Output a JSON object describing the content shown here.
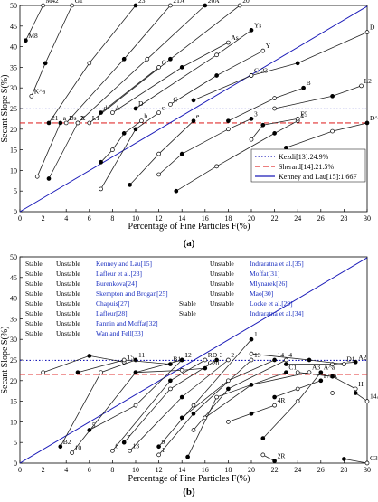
{
  "figure": {
    "panel_a_label": "(a)",
    "panel_b_label": "(b)"
  },
  "chart_data": [
    {
      "type": "line",
      "panel": "(a)",
      "xlabel": "Percentage of Fine Particles  F(%)",
      "ylabel": "Secant Slope  S(%)",
      "xlim": [
        0,
        30
      ],
      "ylim": [
        0,
        50
      ],
      "xticks": [
        0,
        2,
        4,
        6,
        8,
        10,
        12,
        14,
        16,
        18,
        20,
        22,
        24,
        26,
        28,
        30
      ],
      "yticks": [
        0,
        5,
        10,
        15,
        20,
        25,
        30,
        35,
        40,
        45,
        50
      ],
      "grid": false,
      "legend_position": "bottom-right",
      "reference_lines": [
        {
          "name": "Kezdi[13]:24.9%",
          "style": "dotted",
          "color": "#1a1ab8",
          "y": 24.9
        },
        {
          "name": "Sherard[14]:21.5%",
          "style": "dashed",
          "color": "#e03030",
          "y": 21.5
        },
        {
          "name": "Kenney and Lau[15]:1.66F",
          "style": "solid",
          "color": "#1a1ab8",
          "slope": 1.66
        }
      ],
      "curves": [
        {
          "points": [
            [
              0.5,
              41.5
            ],
            [
              2,
              50
            ]
          ]
        },
        {
          "points": [
            [
              1,
              28
            ],
            [
              2.2,
              36
            ],
            [
              4.5,
              50
            ]
          ]
        },
        {
          "points": [
            [
              2.5,
              21.5
            ],
            [
              6,
              36
            ],
            [
              10,
              50
            ]
          ]
        },
        {
          "points": [
            [
              4,
              21.5
            ],
            [
              9,
              37
            ],
            [
              13,
              50
            ]
          ]
        },
        {
          "points": [
            [
              5,
              21.5
            ],
            [
              11,
              37
            ],
            [
              16,
              50
            ]
          ]
        },
        {
          "points": [
            [
              6,
              21.5
            ],
            [
              13,
              37
            ],
            [
              19,
              50
            ]
          ]
        },
        {
          "points": [
            [
              7,
              24
            ],
            [
              12,
              35
            ]
          ]
        },
        {
          "points": [
            [
              8,
              24
            ],
            [
              14,
              35
            ],
            [
              18,
              41
            ]
          ]
        },
        {
          "points": [
            [
              10,
              25
            ],
            [
              17,
              38
            ],
            [
              20,
              44
            ]
          ]
        },
        {
          "points": [
            [
              13,
              26
            ],
            [
              17,
              33
            ],
            [
              21,
              39
            ]
          ]
        },
        {
          "points": [
            [
              15,
              27
            ],
            [
              20,
              33
            ]
          ]
        },
        {
          "points": [
            [
              20,
              33
            ],
            [
              24,
              36
            ],
            [
              30,
              43.5
            ]
          ]
        },
        {
          "points": [
            [
              18,
              22
            ],
            [
              22,
              27.5
            ],
            [
              24.5,
              30
            ]
          ]
        },
        {
          "points": [
            [
              22,
              25
            ],
            [
              27,
              28
            ],
            [
              29.5,
              30.5
            ]
          ]
        },
        {
          "points": [
            [
              2.5,
              8
            ],
            [
              5,
              21.5
            ]
          ]
        },
        {
          "points": [
            [
              1.5,
              8.5
            ],
            [
              3.5,
              21.5
            ]
          ]
        },
        {
          "points": [
            [
              7,
              12
            ],
            [
              8,
              15
            ],
            [
              9,
              19
            ],
            [
              10.5,
              22
            ]
          ]
        },
        {
          "points": [
            [
              7,
              5.5
            ],
            [
              10,
              20
            ],
            [
              12,
              24
            ]
          ]
        },
        {
          "points": [
            [
              9.5,
              6.5
            ],
            [
              12,
              14
            ],
            [
              15,
              22
            ]
          ]
        },
        {
          "points": [
            [
              12,
              9
            ],
            [
              14,
              14
            ],
            [
              18,
              20
            ],
            [
              20,
              22.5
            ]
          ]
        },
        {
          "points": [
            [
              13.5,
              5
            ],
            [
              17,
              11
            ],
            [
              22,
              19
            ],
            [
              24,
              22
            ]
          ]
        },
        {
          "points": [
            [
              20,
              17.5
            ],
            [
              21,
              21
            ],
            [
              24,
              22.5
            ]
          ]
        },
        {
          "points": [
            [
              23,
              15.5
            ],
            [
              27,
              19.5
            ],
            [
              30,
              21.5
            ]
          ]
        }
      ],
      "annotations": [
        "M42",
        "G1",
        "23",
        "21A",
        "20A",
        "20",
        "C",
        "As",
        "Ys",
        "Y",
        "C-23",
        "D",
        "B",
        "L2",
        "2",
        "a",
        "b",
        "c",
        "e",
        "3",
        "4",
        "F9",
        "D^a",
        "M8",
        "K^a",
        "21",
        "Ds",
        "X",
        "L1",
        "d",
        "A",
        "D",
        "C"
      ]
    },
    {
      "type": "line",
      "panel": "(b)",
      "xlabel": "Percentage of Fine Particles  F(%)",
      "ylabel": "Secant Slope  S(%)",
      "xlim": [
        0,
        30
      ],
      "ylim": [
        0,
        50
      ],
      "xticks": [
        0,
        2,
        4,
        6,
        8,
        10,
        12,
        14,
        16,
        18,
        20,
        22,
        24,
        26,
        28,
        30
      ],
      "yticks": [
        0,
        5,
        10,
        15,
        20,
        25,
        30,
        35,
        40,
        45,
        50
      ],
      "grid": false,
      "legend_position": "top",
      "legend": [
        {
          "stable": "Stable",
          "unstable": "Unstable",
          "source": "Kenney and Lau[15]"
        },
        {
          "stable": "Stable",
          "unstable": "Unstable",
          "source": "Lafleur et al.[23]"
        },
        {
          "stable": "Stable",
          "unstable": "Unstable",
          "source": "Burenkova[24]"
        },
        {
          "stable": "Stable",
          "unstable": "Unstable",
          "source": "Skempton and Brogan[25]"
        },
        {
          "stable": "Stable",
          "unstable": "Unstable",
          "source": "Chapuis[27]"
        },
        {
          "stable": "Stable",
          "unstable": "Unstable",
          "source": "Lafleur[28]"
        },
        {
          "stable": "Stable",
          "unstable": "Unstable",
          "source": "Fannin and Moffat[32]"
        },
        {
          "stable": "Stable",
          "unstable": "Unstable",
          "source": "Wan and Fell[33]"
        },
        {
          "stable": "",
          "unstable": "Unstable",
          "source": "Indraratna et al.[35]"
        },
        {
          "stable": "",
          "unstable": "Unstable",
          "source": "Moffat[31]"
        },
        {
          "stable": "",
          "unstable": "Unstable",
          "source": "Mlynarek[26]"
        },
        {
          "stable": "",
          "unstable": "Unstable",
          "source": "Mao[30]"
        },
        {
          "stable": "Stable",
          "unstable": "Unstable",
          "source": "Locke et al.[29]"
        },
        {
          "stable": "Stable",
          "unstable": "",
          "source": "Indraratna et al.[34]"
        }
      ],
      "curves": [
        {
          "points": [
            [
              3.5,
              4
            ],
            [
              7,
              22
            ],
            [
              10,
              25
            ]
          ]
        },
        {
          "points": [
            [
              4.5,
              2.5
            ],
            [
              10,
              22
            ],
            [
              14,
              25
            ]
          ]
        },
        {
          "points": [
            [
              6,
              8
            ],
            [
              10,
              14
            ],
            [
              14,
              25
            ]
          ]
        },
        {
          "points": [
            [
              8,
              3
            ],
            [
              13,
              20
            ],
            [
              16,
              25
            ]
          ]
        },
        {
          "points": [
            [
              9,
              5
            ],
            [
              13,
              18
            ],
            [
              17,
              25
            ]
          ]
        },
        {
          "points": [
            [
              9.5,
              3
            ],
            [
              14,
              16
            ],
            [
              18,
              25
            ]
          ]
        },
        {
          "points": [
            [
              12,
              4
            ],
            [
              15,
              14
            ],
            [
              20,
              30
            ]
          ]
        },
        {
          "points": [
            [
              12,
              2
            ],
            [
              15,
              12
            ],
            [
              20,
              25
            ]
          ]
        },
        {
          "points": [
            [
              14,
              11
            ],
            [
              18,
              20
            ],
            [
              22,
              25
            ]
          ]
        },
        {
          "points": [
            [
              15,
              8
            ],
            [
              18,
              18
            ],
            [
              23,
              25
            ]
          ]
        },
        {
          "points": [
            [
              14.5,
              1.5
            ],
            [
              17,
              16
            ],
            [
              23,
              22
            ]
          ]
        },
        {
          "points": [
            [
              16,
              11
            ],
            [
              20,
              19
            ],
            [
              25,
              22
            ]
          ]
        },
        {
          "points": [
            [
              21,
              6
            ],
            [
              24,
              15
            ],
            [
              26,
              22
            ]
          ]
        },
        {
          "points": [
            [
              24,
              22
            ],
            [
              27,
              21
            ],
            [
              29,
              18
            ]
          ]
        },
        {
          "points": [
            [
              23,
              24
            ],
            [
              27,
              24
            ],
            [
              29,
              24.5
            ]
          ]
        },
        {
          "points": [
            [
              27,
              17
            ],
            [
              29,
              17
            ],
            [
              30,
              15
            ]
          ]
        },
        {
          "points": [
            [
              22,
              16
            ],
            [
              24,
              18
            ],
            [
              26,
              20
            ]
          ]
        },
        {
          "points": [
            [
              18,
              10
            ],
            [
              20,
              12
            ],
            [
              22,
              14
            ]
          ]
        },
        {
          "points": [
            [
              10,
              22
            ],
            [
              14,
              22.5
            ],
            [
              16,
              23
            ]
          ]
        },
        {
          "points": [
            [
              2,
              22
            ],
            [
              6,
              26
            ],
            [
              9,
              24.5
            ]
          ]
        },
        {
          "points": [
            [
              5,
              22
            ],
            [
              9,
              25
            ],
            [
              13,
              24
            ]
          ]
        },
        {
          "points": [
            [
              20,
              26.5
            ],
            [
              25,
              25
            ],
            [
              28,
              24
            ]
          ]
        },
        {
          "points": [
            [
              28,
              1
            ],
            [
              30,
              0
            ]
          ]
        },
        {
          "points": [
            [
              21,
              2
            ],
            [
              22,
              0.5
            ]
          ]
        }
      ],
      "annotations": [
        "11",
        "1",
        "12",
        "RD",
        "3",
        "2",
        "1",
        "13",
        "14",
        "4",
        "C1",
        "A3",
        "A^a",
        "H",
        "A2",
        "14A",
        "F/1A",
        "4R",
        "C20",
        "T5",
        "B1",
        "D1",
        "C30",
        "2R",
        "B2",
        "10",
        "5",
        "6",
        "7",
        "13",
        "9",
        "1"
      ]
    }
  ]
}
